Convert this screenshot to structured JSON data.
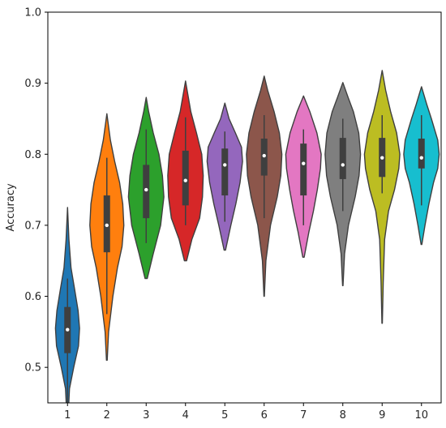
{
  "chart_data": {
    "type": "violin",
    "title": "",
    "xlabel": "",
    "ylabel": "Accuracy",
    "ylim": [
      0.45,
      1.0
    ],
    "yticks": [
      "0.5",
      "0.6",
      "0.7",
      "0.8",
      "0.9",
      "1.0"
    ],
    "categories": [
      "1",
      "2",
      "3",
      "4",
      "5",
      "6",
      "7",
      "8",
      "9",
      "10"
    ],
    "grid": false,
    "violins": [
      {
        "category": "1",
        "color": "#1f77b4",
        "min": 0.42,
        "max": 0.725,
        "q1": 0.52,
        "median": 0.553,
        "q3": 0.585,
        "whisker_low": 0.45,
        "whisker_high": 0.625,
        "profile": [
          [
            0.42,
            0.018
          ],
          [
            0.47,
            0.11
          ],
          [
            0.5,
            0.35
          ],
          [
            0.53,
            0.62
          ],
          [
            0.555,
            0.68
          ],
          [
            0.58,
            0.6
          ],
          [
            0.61,
            0.4
          ],
          [
            0.64,
            0.2
          ],
          [
            0.68,
            0.08
          ],
          [
            0.725,
            0.0
          ]
        ]
      },
      {
        "category": "2",
        "color": "#ff7f0e",
        "min": 0.51,
        "max": 0.857,
        "q1": 0.662,
        "median": 0.7,
        "q3": 0.742,
        "whisker_low": 0.575,
        "whisker_high": 0.795,
        "profile": [
          [
            0.51,
            0.02
          ],
          [
            0.55,
            0.1
          ],
          [
            0.6,
            0.34
          ],
          [
            0.64,
            0.6
          ],
          [
            0.67,
            0.86
          ],
          [
            0.7,
            0.96
          ],
          [
            0.73,
            0.9
          ],
          [
            0.76,
            0.72
          ],
          [
            0.79,
            0.44
          ],
          [
            0.82,
            0.2
          ],
          [
            0.857,
            0.0
          ]
        ]
      },
      {
        "category": "3",
        "color": "#2ca02c",
        "min": 0.625,
        "max": 0.88,
        "q1": 0.71,
        "median": 0.75,
        "q3": 0.785,
        "whisker_low": 0.675,
        "whisker_high": 0.835,
        "profile": [
          [
            0.625,
            0.06
          ],
          [
            0.66,
            0.4
          ],
          [
            0.7,
            0.82
          ],
          [
            0.74,
            1.0
          ],
          [
            0.77,
            0.92
          ],
          [
            0.8,
            0.72
          ],
          [
            0.83,
            0.4
          ],
          [
            0.86,
            0.14
          ],
          [
            0.88,
            0.0
          ]
        ]
      },
      {
        "category": "4",
        "color": "#d62728",
        "min": 0.65,
        "max": 0.903,
        "q1": 0.728,
        "median": 0.763,
        "q3": 0.805,
        "whisker_low": 0.7,
        "whisker_high": 0.852,
        "profile": [
          [
            0.65,
            0.06
          ],
          [
            0.68,
            0.36
          ],
          [
            0.71,
            0.8
          ],
          [
            0.74,
            0.96
          ],
          [
            0.77,
            1.0
          ],
          [
            0.8,
            0.92
          ],
          [
            0.83,
            0.62
          ],
          [
            0.86,
            0.3
          ],
          [
            0.903,
            0.0
          ]
        ]
      },
      {
        "category": "5",
        "color": "#9467bd",
        "min": 0.665,
        "max": 0.872,
        "q1": 0.742,
        "median": 0.785,
        "q3": 0.808,
        "whisker_low": 0.705,
        "whisker_high": 0.832,
        "profile": [
          [
            0.665,
            0.04
          ],
          [
            0.7,
            0.34
          ],
          [
            0.73,
            0.62
          ],
          [
            0.76,
            0.86
          ],
          [
            0.79,
            1.0
          ],
          [
            0.81,
            0.94
          ],
          [
            0.83,
            0.6
          ],
          [
            0.85,
            0.24
          ],
          [
            0.872,
            0.0
          ]
        ]
      },
      {
        "category": "6",
        "color": "#8c564b",
        "min": 0.6,
        "max": 0.91,
        "q1": 0.77,
        "median": 0.798,
        "q3": 0.822,
        "whisker_low": 0.71,
        "whisker_high": 0.855,
        "profile": [
          [
            0.6,
            0.01
          ],
          [
            0.65,
            0.1
          ],
          [
            0.7,
            0.36
          ],
          [
            0.74,
            0.74
          ],
          [
            0.77,
            0.94
          ],
          [
            0.8,
            1.0
          ],
          [
            0.83,
            0.86
          ],
          [
            0.86,
            0.56
          ],
          [
            0.89,
            0.2
          ],
          [
            0.91,
            0.0
          ]
        ]
      },
      {
        "category": "7",
        "color": "#e377c2",
        "min": 0.655,
        "max": 0.882,
        "q1": 0.742,
        "median": 0.787,
        "q3": 0.815,
        "whisker_low": 0.7,
        "whisker_high": 0.835,
        "profile": [
          [
            0.655,
            0.04
          ],
          [
            0.69,
            0.3
          ],
          [
            0.72,
            0.56
          ],
          [
            0.75,
            0.78
          ],
          [
            0.78,
            0.96
          ],
          [
            0.8,
            1.0
          ],
          [
            0.83,
            0.76
          ],
          [
            0.86,
            0.36
          ],
          [
            0.882,
            0.0
          ]
        ]
      },
      {
        "category": "8",
        "color": "#7f7f7f",
        "min": 0.615,
        "max": 0.901,
        "q1": 0.765,
        "median": 0.785,
        "q3": 0.823,
        "whisker_low": 0.72,
        "whisker_high": 0.85,
        "profile": [
          [
            0.615,
            0.01
          ],
          [
            0.66,
            0.1
          ],
          [
            0.7,
            0.32
          ],
          [
            0.74,
            0.7
          ],
          [
            0.77,
            0.92
          ],
          [
            0.8,
            1.0
          ],
          [
            0.83,
            0.9
          ],
          [
            0.86,
            0.6
          ],
          [
            0.88,
            0.3
          ],
          [
            0.901,
            0.0
          ]
        ]
      },
      {
        "category": "9",
        "color": "#bcbd22",
        "min": 0.562,
        "max": 0.918,
        "q1": 0.768,
        "median": 0.795,
        "q3": 0.823,
        "whisker_low": 0.745,
        "whisker_high": 0.855,
        "profile": [
          [
            0.562,
            0.01
          ],
          [
            0.62,
            0.06
          ],
          [
            0.68,
            0.14
          ],
          [
            0.72,
            0.36
          ],
          [
            0.75,
            0.7
          ],
          [
            0.78,
            0.94
          ],
          [
            0.8,
            1.0
          ],
          [
            0.83,
            0.82
          ],
          [
            0.86,
            0.48
          ],
          [
            0.89,
            0.2
          ],
          [
            0.918,
            0.0
          ]
        ]
      },
      {
        "category": "10",
        "color": "#17becf",
        "min": 0.673,
        "max": 0.895,
        "q1": 0.78,
        "median": 0.795,
        "q3": 0.822,
        "whisker_low": 0.728,
        "whisker_high": 0.855,
        "profile": [
          [
            0.673,
            0.02
          ],
          [
            0.7,
            0.2
          ],
          [
            0.73,
            0.42
          ],
          [
            0.76,
            0.68
          ],
          [
            0.78,
            0.92
          ],
          [
            0.8,
            1.0
          ],
          [
            0.82,
            0.92
          ],
          [
            0.85,
            0.56
          ],
          [
            0.87,
            0.3
          ],
          [
            0.895,
            0.0
          ]
        ]
      }
    ]
  }
}
